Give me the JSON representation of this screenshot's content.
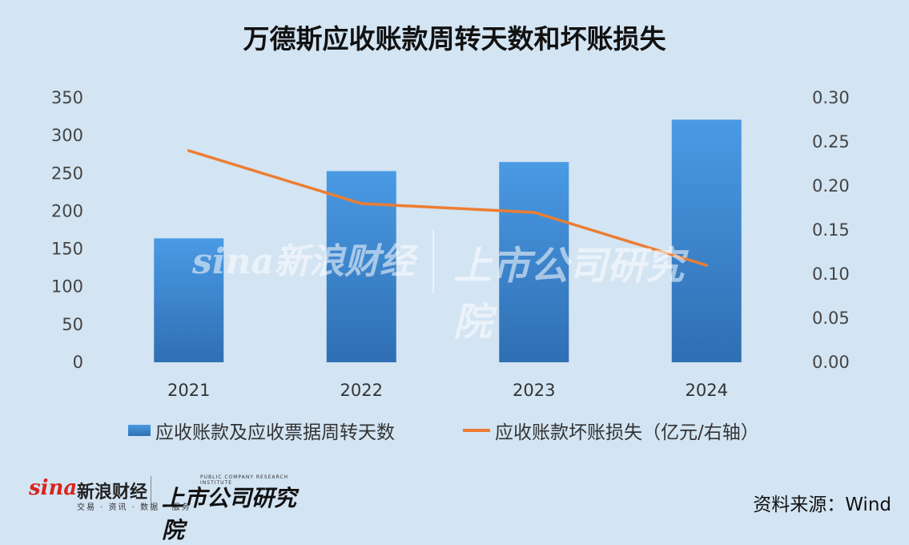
{
  "title": "万德斯应收账款周转天数和坏账损失",
  "chart_data": {
    "type": "bar",
    "categories": [
      "2021",
      "2022",
      "2023",
      "2024"
    ],
    "series": [
      {
        "name": "应收账款及应收票据周转天数",
        "type": "bar",
        "axis": "left",
        "values": [
          164,
          253,
          265,
          321
        ]
      },
      {
        "name": "应收账款坏账损失（亿元/右轴）",
        "type": "line",
        "axis": "right",
        "values": [
          0.24,
          0.18,
          0.17,
          0.11
        ]
      }
    ],
    "y_left": {
      "min": 0,
      "max": 350,
      "ticks": [
        "0",
        "50",
        "100",
        "150",
        "200",
        "250",
        "300",
        "350"
      ]
    },
    "y_right": {
      "min": 0,
      "max": 0.3,
      "ticks": [
        "0.00",
        "0.05",
        "0.10",
        "0.15",
        "0.20",
        "0.25",
        "0.30"
      ]
    },
    "grid": false,
    "legend": "bottom"
  },
  "colors": {
    "bar": "#3d86d0",
    "line": "#ed7d31",
    "background": "#d3e4f3"
  },
  "watermark": {
    "brand": "sina新浪财经",
    "research": "上市公司研究院"
  },
  "footer": {
    "sina_word": "sina",
    "sina_cn": "新浪财经",
    "sina_sub": "交易 · 资讯 · 数据 · 服务",
    "research_en": "PUBLIC COMPANY RESEARCH INSTITUTE",
    "research_cn": "上市公司研究院",
    "source": "资料来源：Wind"
  }
}
